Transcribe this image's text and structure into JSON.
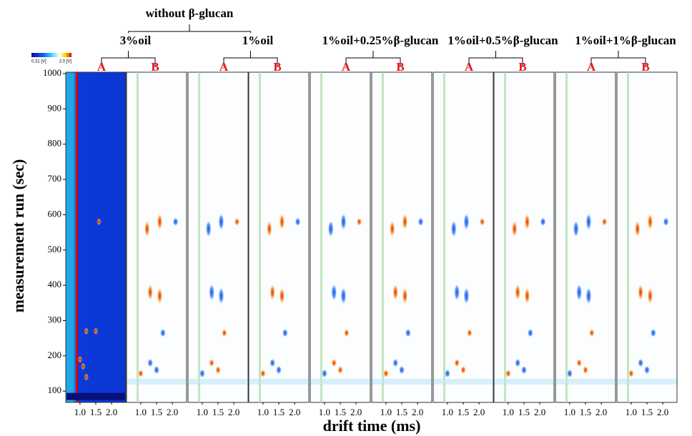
{
  "chart_data": {
    "type": "gc-ims",
    "y_label": "measurement run (sec)",
    "x_label": "drift time (ms)",
    "ylim": [
      68,
      1004
    ],
    "yticks": [
      100,
      200,
      300,
      400,
      500,
      600,
      700,
      800,
      900,
      1000
    ],
    "xlim": [
      0.55,
      2.45
    ],
    "xticks": [
      {
        "value": 1,
        "label": "1.0"
      },
      1.5,
      {
        "value": 2,
        "label": "2.0"
      }
    ],
    "colorbar": {
      "min_label": "0.31 [V]",
      "max_label": "2.0 [V]"
    },
    "bracket_label": "without β-glucan",
    "treatments": [
      {
        "label": "3%oil",
        "panels": [
          "A",
          "B"
        ]
      },
      {
        "label": "1%oil",
        "panels": [
          "A",
          "B"
        ]
      },
      {
        "label": "1%oil+0.25%β-glucan",
        "panels": [
          "A",
          "B"
        ]
      },
      {
        "label": "1%oil+0.5%β-glucan",
        "panels": [
          "A",
          "B"
        ]
      },
      {
        "label": "1%oil+1%β-glucan",
        "panels": [
          "A",
          "B"
        ]
      }
    ]
  }
}
